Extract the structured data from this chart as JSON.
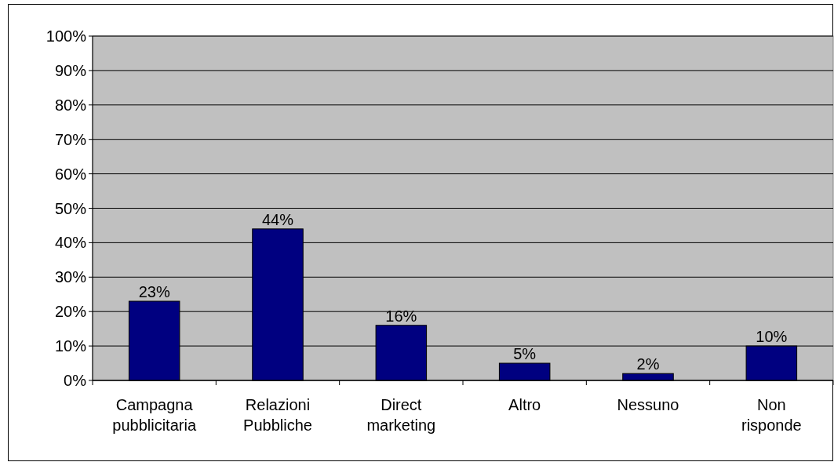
{
  "chart_data": {
    "type": "bar",
    "categories": [
      "Campagna pubblicitaria",
      "Relazioni Pubbliche",
      "Direct marketing",
      "Altro",
      "Nessuno",
      "Non risponde"
    ],
    "values": [
      23,
      44,
      16,
      5,
      2,
      10
    ],
    "value_labels": [
      "23%",
      "44%",
      "16%",
      "5%",
      "2%",
      "10%"
    ],
    "color": "#000080",
    "ylim": [
      0,
      100
    ],
    "yticks": [
      {
        "value": 0,
        "label": "0%"
      },
      {
        "value": 10,
        "label": "10%"
      },
      {
        "value": 20,
        "label": "20%"
      },
      {
        "value": 30,
        "label": "30%"
      },
      {
        "value": 40,
        "label": "40%"
      },
      {
        "value": 50,
        "label": "50%"
      },
      {
        "value": 60,
        "label": "60%"
      },
      {
        "value": 70,
        "label": "70%"
      },
      {
        "value": 80,
        "label": "80%"
      },
      {
        "value": 90,
        "label": "90%"
      },
      {
        "value": 100,
        "label": "100%"
      }
    ],
    "grid": "y"
  }
}
